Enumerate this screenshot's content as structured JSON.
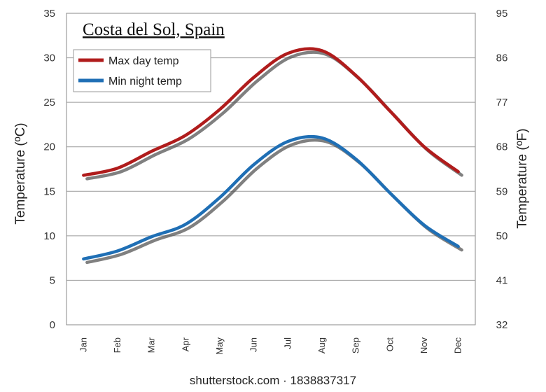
{
  "chart_data": {
    "type": "line",
    "title": "Costa del Sol, Spain",
    "categories": [
      "Jan",
      "Feb",
      "Mar",
      "Apr",
      "May",
      "Jun",
      "Jul",
      "Aug",
      "Sep",
      "Oct",
      "Nov",
      "Dec"
    ],
    "series": [
      {
        "name": "Max day temp",
        "color": "#b01c1c",
        "values": [
          16.8,
          17.6,
          19.5,
          21.3,
          24.2,
          27.8,
          30.5,
          30.8,
          28.0,
          24.0,
          20.0,
          17.2
        ]
      },
      {
        "name": "Min night temp",
        "color": "#1f6fb5",
        "values": [
          7.4,
          8.3,
          9.9,
          11.3,
          14.3,
          18.0,
          20.6,
          21.0,
          18.6,
          14.8,
          11.2,
          8.8
        ]
      }
    ],
    "ylabel": "Temperature (ºC)",
    "y2label": "Temperature (ºF)",
    "ylim": [
      0,
      35
    ],
    "yticks": [
      "0",
      "5",
      "10",
      "15",
      "20",
      "25",
      "30",
      "35"
    ],
    "y2ticks": [
      "32",
      "41",
      "50",
      "59",
      "68",
      "77",
      "86",
      "95"
    ],
    "grid": true,
    "legend_position": "top-left"
  },
  "watermark": "shutterstock.com · 1838837317"
}
